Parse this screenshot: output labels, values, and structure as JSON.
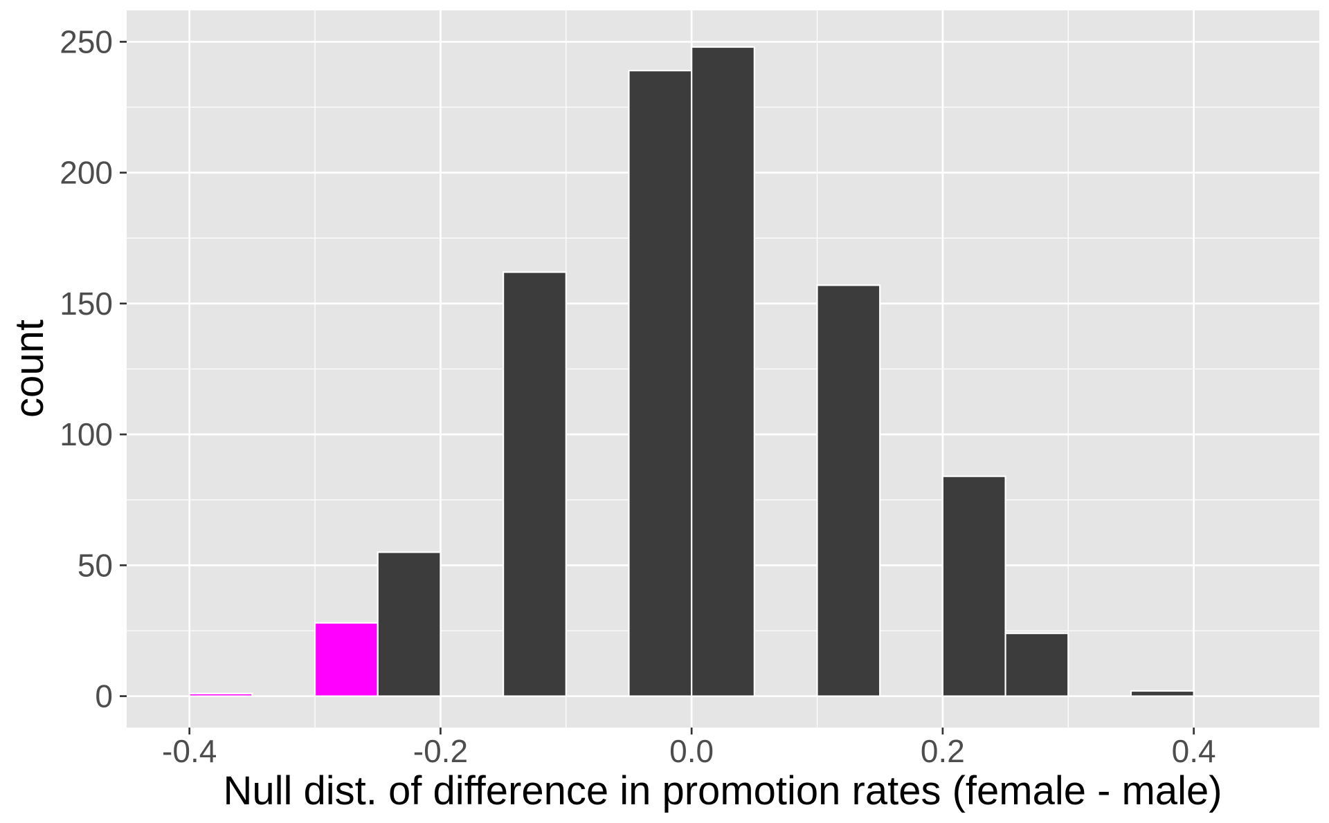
{
  "chart_data": {
    "type": "bar",
    "subtype": "histogram",
    "title": "",
    "xlabel": "Null dist. of difference in promotion rates (female - male)",
    "ylabel": "count",
    "xlim": [
      -0.45,
      0.5
    ],
    "ylim": [
      -12,
      262
    ],
    "x_ticks": [
      -0.4,
      -0.2,
      0.0,
      0.2,
      0.4
    ],
    "x_tick_labels": [
      "-0.4",
      "-0.2",
      "0.0",
      "0.2",
      "0.4"
    ],
    "x_minor_ticks": [
      -0.3,
      -0.1,
      0.1,
      0.3
    ],
    "y_ticks": [
      0,
      50,
      100,
      150,
      200,
      250
    ],
    "y_tick_labels": [
      "0",
      "50",
      "100",
      "150",
      "200",
      "250"
    ],
    "y_minor_ticks": [
      25,
      75,
      125,
      175,
      225
    ],
    "bin_width": 0.05,
    "grid": true,
    "legend": "none",
    "colors": {
      "panel_background": "#E5E5E5",
      "grid": "#FFFFFF",
      "bar_fill": "#3C3C3C",
      "highlight_fill": "#FF00FF",
      "bar_outline": "#FFFFFF"
    },
    "bins": [
      {
        "x": -0.375,
        "count": 1,
        "highlight": true
      },
      {
        "x": -0.275,
        "count": 28,
        "highlight": true
      },
      {
        "x": -0.225,
        "count": 55,
        "highlight": false
      },
      {
        "x": -0.125,
        "count": 162,
        "highlight": false
      },
      {
        "x": -0.025,
        "count": 239,
        "highlight": false
      },
      {
        "x": 0.025,
        "count": 248,
        "highlight": false
      },
      {
        "x": 0.125,
        "count": 157,
        "highlight": false
      },
      {
        "x": 0.225,
        "count": 84,
        "highlight": false
      },
      {
        "x": 0.275,
        "count": 24,
        "highlight": false
      },
      {
        "x": 0.375,
        "count": 2,
        "highlight": false
      }
    ]
  }
}
